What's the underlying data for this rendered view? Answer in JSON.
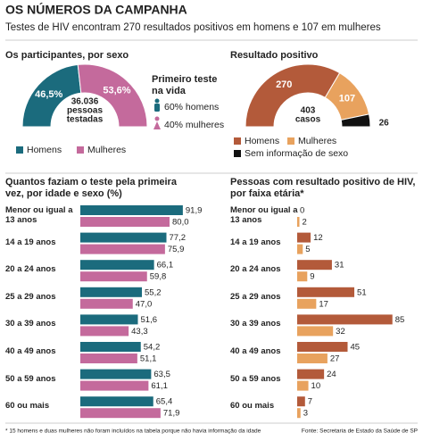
{
  "header": {
    "title": "OS NÚMEROS DA CAMPANHA",
    "subtitle": "Testes de HIV encontram 270 resultados positivos em homens e 107 em mulheres"
  },
  "chart_data": [
    {
      "type": "pie",
      "title": "Os participantes, por sexo",
      "categories": [
        "Homens",
        "Mulheres"
      ],
      "values": [
        46.5,
        53.6
      ],
      "value_labels": [
        "46,5%",
        "53,6%"
      ],
      "colors": [
        "#1b6b7d",
        "#c46a9c"
      ],
      "center_label": [
        "36.036",
        "pessoas",
        "testadas"
      ],
      "annotation": {
        "title": "Primeiro teste na vida",
        "items": [
          "60% homens",
          "40% mulheres"
        ]
      }
    },
    {
      "type": "pie",
      "title": "Resultado positivo",
      "categories": [
        "Homens",
        "Mulheres",
        "Sem informação de sexo"
      ],
      "values": [
        270,
        107,
        26
      ],
      "colors": [
        "#b35a3a",
        "#e8a25e",
        "#111111"
      ],
      "center_label": [
        "403",
        "casos"
      ]
    },
    {
      "type": "bar",
      "title": "Quantos faziam o teste pela primeira vez, por idade e sexo (%)",
      "categories": [
        "Menor ou igual a 13 anos",
        "14 a 19 anos",
        "20 a 24 anos",
        "25 a 29 anos",
        "30 a 39 anos",
        "40 a 49 anos",
        "50 a 59 anos",
        "60 ou mais"
      ],
      "xlim": [
        0,
        100
      ],
      "series": [
        {
          "color": "#1b6b7d",
          "values": [
            91.9,
            77.2,
            66.1,
            55.2,
            51.6,
            54.2,
            63.5,
            65.4
          ],
          "value_labels": [
            "91,9",
            "77,2",
            "66,1",
            "55,2",
            "51,6",
            "54,2",
            "63,5",
            "65,4"
          ]
        },
        {
          "color": "#c46a9c",
          "values": [
            80.0,
            75.9,
            59.8,
            47.0,
            43.3,
            51.1,
            61.1,
            71.9
          ],
          "value_labels": [
            "80,0",
            "75,9",
            "59,8",
            "47,0",
            "43,3",
            "51,1",
            "61,1",
            "71,9"
          ]
        }
      ]
    },
    {
      "type": "bar",
      "title": "Pessoas com resultado positivo de HIV, por faixa etária*",
      "categories": [
        "Menor ou igual a 13 anos",
        "14 a 19 anos",
        "20 a 24 anos",
        "25 a 29 anos",
        "30 a 39 anos",
        "40 a 49 anos",
        "50 a 59 anos",
        "60 ou mais"
      ],
      "xlim": [
        0,
        90
      ],
      "series": [
        {
          "color": "#b35a3a",
          "values": [
            0,
            12,
            31,
            51,
            85,
            45,
            24,
            7
          ]
        },
        {
          "color": "#e8a25e",
          "values": [
            2,
            5,
            9,
            17,
            32,
            27,
            10,
            3
          ]
        }
      ]
    }
  ],
  "footer": {
    "note": "* 15 homens e duas mulheres não foram incluídos na tabela porque não havia informação da idade",
    "source": "Fonte: Secretaria de Estado da Saúde de SP"
  }
}
